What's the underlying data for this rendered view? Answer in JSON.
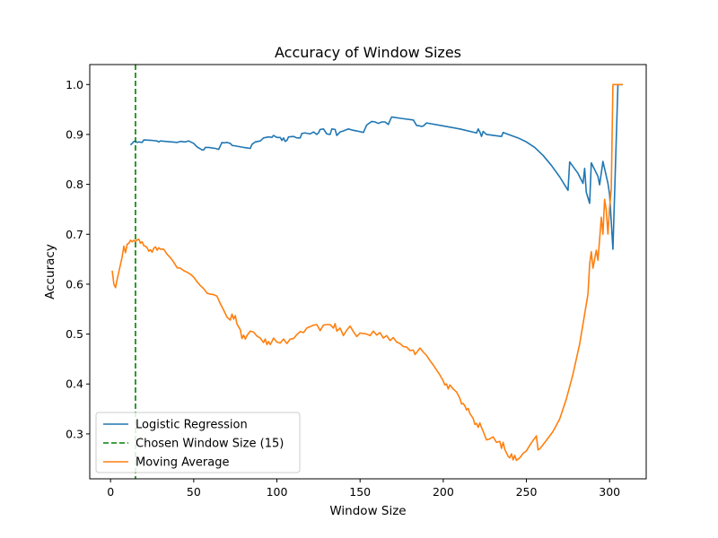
{
  "chart_data": {
    "type": "line",
    "title": "Accuracy of Window Sizes",
    "xlabel": "Window Size",
    "ylabel": "Accuracy",
    "xlim": [
      -12.5,
      322
    ],
    "ylim": [
      0.21,
      1.04
    ],
    "xticks": [
      0,
      50,
      100,
      150,
      200,
      250,
      300
    ],
    "yticks": [
      0.3,
      0.4,
      0.5,
      0.6,
      0.7,
      0.8,
      0.9,
      1.0
    ],
    "ytick_labels": [
      "0.3",
      "0.4",
      "0.5",
      "0.6",
      "0.7",
      "0.8",
      "0.9",
      "1.0"
    ],
    "grid": false,
    "legend_position": "lower-left",
    "vline": {
      "name": "Chosen Window Size (15)",
      "x": 15,
      "color": "#008000",
      "style": "dashed"
    },
    "series": [
      {
        "name": "Logistic Regression",
        "color": "#1f77b4",
        "points": [
          [
            12,
            0.879
          ],
          [
            13,
            0.882
          ],
          [
            14,
            0.886
          ],
          [
            15,
            0.886
          ],
          [
            16,
            0.884
          ],
          [
            17,
            0.885
          ],
          [
            19,
            0.884
          ],
          [
            20,
            0.889
          ],
          [
            25,
            0.888
          ],
          [
            28,
            0.887
          ],
          [
            29,
            0.885
          ],
          [
            30,
            0.887
          ],
          [
            40,
            0.884
          ],
          [
            42,
            0.886
          ],
          [
            45,
            0.885
          ],
          [
            47,
            0.887
          ],
          [
            50,
            0.882
          ],
          [
            52,
            0.875
          ],
          [
            55,
            0.869
          ],
          [
            56,
            0.869
          ],
          [
            57,
            0.874
          ],
          [
            59,
            0.874
          ],
          [
            63,
            0.872
          ],
          [
            65,
            0.87
          ],
          [
            67,
            0.884
          ],
          [
            68,
            0.883
          ],
          [
            70,
            0.884
          ],
          [
            72,
            0.882
          ],
          [
            73,
            0.878
          ],
          [
            75,
            0.877
          ],
          [
            80,
            0.874
          ],
          [
            82,
            0.873
          ],
          [
            84,
            0.872
          ],
          [
            85,
            0.88
          ],
          [
            87,
            0.885
          ],
          [
            90,
            0.887
          ],
          [
            92,
            0.893
          ],
          [
            95,
            0.895
          ],
          [
            97,
            0.894
          ],
          [
            98,
            0.898
          ],
          [
            100,
            0.894
          ],
          [
            102,
            0.894
          ],
          [
            103,
            0.888
          ],
          [
            104,
            0.893
          ],
          [
            105,
            0.886
          ],
          [
            106,
            0.888
          ],
          [
            107,
            0.895
          ],
          [
            110,
            0.896
          ],
          [
            112,
            0.893
          ],
          [
            114,
            0.893
          ],
          [
            115,
            0.902
          ],
          [
            117,
            0.903
          ],
          [
            120,
            0.901
          ],
          [
            122,
            0.905
          ],
          [
            124,
            0.9
          ],
          [
            125,
            0.903
          ],
          [
            126,
            0.91
          ],
          [
            128,
            0.911
          ],
          [
            130,
            0.901
          ],
          [
            132,
            0.9
          ],
          [
            133,
            0.911
          ],
          [
            135,
            0.91
          ],
          [
            136,
            0.898
          ],
          [
            138,
            0.905
          ],
          [
            140,
            0.907
          ],
          [
            143,
            0.911
          ],
          [
            145,
            0.909
          ],
          [
            148,
            0.907
          ],
          [
            152,
            0.904
          ],
          [
            154,
            0.919
          ],
          [
            157,
            0.926
          ],
          [
            159,
            0.925
          ],
          [
            161,
            0.922
          ],
          [
            163,
            0.925
          ],
          [
            165,
            0.925
          ],
          [
            167,
            0.92
          ],
          [
            168,
            0.928
          ],
          [
            169,
            0.935
          ],
          [
            175,
            0.932
          ],
          [
            182,
            0.929
          ],
          [
            184,
            0.918
          ],
          [
            186,
            0.917
          ],
          [
            187,
            0.916
          ],
          [
            188,
            0.917
          ],
          [
            190,
            0.923
          ],
          [
            200,
            0.917
          ],
          [
            210,
            0.911
          ],
          [
            220,
            0.903
          ],
          [
            221,
            0.911
          ],
          [
            222,
            0.905
          ],
          [
            223,
            0.896
          ],
          [
            224,
            0.906
          ],
          [
            226,
            0.9
          ],
          [
            235,
            0.896
          ],
          [
            236,
            0.904
          ],
          [
            240,
            0.899
          ],
          [
            245,
            0.893
          ],
          [
            250,
            0.885
          ],
          [
            255,
            0.874
          ],
          [
            260,
            0.858
          ],
          [
            265,
            0.838
          ],
          [
            270,
            0.815
          ],
          [
            275,
            0.788
          ],
          [
            276,
            0.845
          ],
          [
            281,
            0.822
          ],
          [
            284,
            0.802
          ],
          [
            285,
            0.832
          ],
          [
            286,
            0.784
          ],
          [
            288,
            0.762
          ],
          [
            289,
            0.843
          ],
          [
            293,
            0.816
          ],
          [
            294,
            0.799
          ],
          [
            296,
            0.846
          ],
          [
            299,
            0.802
          ],
          [
            300,
            0.78
          ],
          [
            302,
            0.67
          ],
          [
            305,
            1.0
          ],
          [
            308,
            1.0
          ]
        ]
      },
      {
        "name": "Moving Average",
        "color": "#ff7f0e",
        "points": [
          [
            1,
            0.627
          ],
          [
            2,
            0.6
          ],
          [
            3,
            0.593
          ],
          [
            4,
            0.61
          ],
          [
            5,
            0.625
          ],
          [
            6,
            0.64
          ],
          [
            7,
            0.655
          ],
          [
            8,
            0.676
          ],
          [
            9,
            0.663
          ],
          [
            10,
            0.68
          ],
          [
            11,
            0.682
          ],
          [
            12,
            0.688
          ],
          [
            13,
            0.685
          ],
          [
            14,
            0.688
          ],
          [
            15,
            0.685
          ],
          [
            16,
            0.689
          ],
          [
            17,
            0.69
          ],
          [
            18,
            0.682
          ],
          [
            19,
            0.685
          ],
          [
            20,
            0.677
          ],
          [
            21,
            0.676
          ],
          [
            22,
            0.673
          ],
          [
            23,
            0.666
          ],
          [
            24,
            0.669
          ],
          [
            25,
            0.664
          ],
          [
            26,
            0.672
          ],
          [
            27,
            0.675
          ],
          [
            28,
            0.668
          ],
          [
            29,
            0.673
          ],
          [
            30,
            0.67
          ],
          [
            32,
            0.67
          ],
          [
            34,
            0.66
          ],
          [
            36,
            0.653
          ],
          [
            38,
            0.644
          ],
          [
            40,
            0.633
          ],
          [
            42,
            0.632
          ],
          [
            44,
            0.627
          ],
          [
            46,
            0.624
          ],
          [
            48,
            0.62
          ],
          [
            50,
            0.614
          ],
          [
            52,
            0.605
          ],
          [
            54,
            0.597
          ],
          [
            56,
            0.591
          ],
          [
            58,
            0.582
          ],
          [
            60,
            0.58
          ],
          [
            62,
            0.579
          ],
          [
            64,
            0.576
          ],
          [
            66,
            0.561
          ],
          [
            68,
            0.548
          ],
          [
            70,
            0.534
          ],
          [
            72,
            0.528
          ],
          [
            73,
            0.54
          ],
          [
            74,
            0.53
          ],
          [
            75,
            0.537
          ],
          [
            76,
            0.52
          ],
          [
            78,
            0.509
          ],
          [
            79,
            0.491
          ],
          [
            80,
            0.498
          ],
          [
            81,
            0.49
          ],
          [
            82,
            0.497
          ],
          [
            84,
            0.506
          ],
          [
            86,
            0.504
          ],
          [
            88,
            0.496
          ],
          [
            90,
            0.492
          ],
          [
            92,
            0.483
          ],
          [
            93,
            0.49
          ],
          [
            94,
            0.479
          ],
          [
            95,
            0.485
          ],
          [
            96,
            0.479
          ],
          [
            97,
            0.485
          ],
          [
            98,
            0.492
          ],
          [
            100,
            0.484
          ],
          [
            102,
            0.482
          ],
          [
            104,
            0.49
          ],
          [
            106,
            0.481
          ],
          [
            108,
            0.49
          ],
          [
            110,
            0.491
          ],
          [
            112,
            0.499
          ],
          [
            114,
            0.505
          ],
          [
            116,
            0.503
          ],
          [
            118,
            0.512
          ],
          [
            120,
            0.515
          ],
          [
            122,
            0.518
          ],
          [
            124,
            0.519
          ],
          [
            126,
            0.507
          ],
          [
            128,
            0.518
          ],
          [
            130,
            0.519
          ],
          [
            132,
            0.519
          ],
          [
            134,
            0.512
          ],
          [
            135,
            0.521
          ],
          [
            136,
            0.506
          ],
          [
            138,
            0.512
          ],
          [
            140,
            0.497
          ],
          [
            142,
            0.508
          ],
          [
            144,
            0.516
          ],
          [
            146,
            0.505
          ],
          [
            148,
            0.495
          ],
          [
            150,
            0.502
          ],
          [
            152,
            0.501
          ],
          [
            154,
            0.5
          ],
          [
            156,
            0.497
          ],
          [
            158,
            0.506
          ],
          [
            160,
            0.498
          ],
          [
            162,
            0.503
          ],
          [
            164,
            0.492
          ],
          [
            166,
            0.497
          ],
          [
            168,
            0.487
          ],
          [
            170,
            0.493
          ],
          [
            172,
            0.484
          ],
          [
            174,
            0.481
          ],
          [
            176,
            0.475
          ],
          [
            178,
            0.474
          ],
          [
            180,
            0.467
          ],
          [
            182,
            0.468
          ],
          [
            183,
            0.459
          ],
          [
            184,
            0.463
          ],
          [
            186,
            0.472
          ],
          [
            188,
            0.464
          ],
          [
            190,
            0.457
          ],
          [
            192,
            0.447
          ],
          [
            194,
            0.438
          ],
          [
            196,
            0.428
          ],
          [
            198,
            0.418
          ],
          [
            200,
            0.406
          ],
          [
            201,
            0.398
          ],
          [
            202,
            0.4
          ],
          [
            203,
            0.39
          ],
          [
            204,
            0.398
          ],
          [
            206,
            0.39
          ],
          [
            208,
            0.384
          ],
          [
            210,
            0.371
          ],
          [
            211,
            0.36
          ],
          [
            212,
            0.361
          ],
          [
            213,
            0.356
          ],
          [
            214,
            0.348
          ],
          [
            215,
            0.351
          ],
          [
            216,
            0.341
          ],
          [
            218,
            0.331
          ],
          [
            219,
            0.319
          ],
          [
            220,
            0.321
          ],
          [
            221,
            0.313
          ],
          [
            222,
            0.322
          ],
          [
            223,
            0.313
          ],
          [
            224,
            0.305
          ],
          [
            226,
            0.288
          ],
          [
            228,
            0.29
          ],
          [
            230,
            0.294
          ],
          [
            232,
            0.283
          ],
          [
            234,
            0.285
          ],
          [
            235,
            0.271
          ],
          [
            236,
            0.283
          ],
          [
            237,
            0.269
          ],
          [
            238,
            0.262
          ],
          [
            239,
            0.255
          ],
          [
            240,
            0.252
          ],
          [
            241,
            0.26
          ],
          [
            242,
            0.248
          ],
          [
            243,
            0.257
          ],
          [
            244,
            0.247
          ],
          [
            246,
            0.252
          ],
          [
            248,
            0.261
          ],
          [
            250,
            0.266
          ],
          [
            252,
            0.277
          ],
          [
            254,
            0.287
          ],
          [
            256,
            0.296
          ],
          [
            257,
            0.268
          ],
          [
            258,
            0.27
          ],
          [
            262,
            0.287
          ],
          [
            266,
            0.305
          ],
          [
            270,
            0.33
          ],
          [
            274,
            0.37
          ],
          [
            278,
            0.42
          ],
          [
            282,
            0.48
          ],
          [
            285,
            0.54
          ],
          [
            287,
            0.58
          ],
          [
            288,
            0.64
          ],
          [
            289,
            0.665
          ],
          [
            290,
            0.632
          ],
          [
            291,
            0.65
          ],
          [
            292,
            0.668
          ],
          [
            293,
            0.648
          ],
          [
            294,
            0.69
          ],
          [
            295,
            0.734
          ],
          [
            296,
            0.7
          ],
          [
            297,
            0.77
          ],
          [
            298,
            0.748
          ],
          [
            299,
            0.7
          ],
          [
            300,
            0.754
          ],
          [
            301,
            0.79
          ],
          [
            302,
            1.0
          ],
          [
            305,
            1.0
          ],
          [
            308,
            1.0
          ]
        ]
      }
    ]
  }
}
